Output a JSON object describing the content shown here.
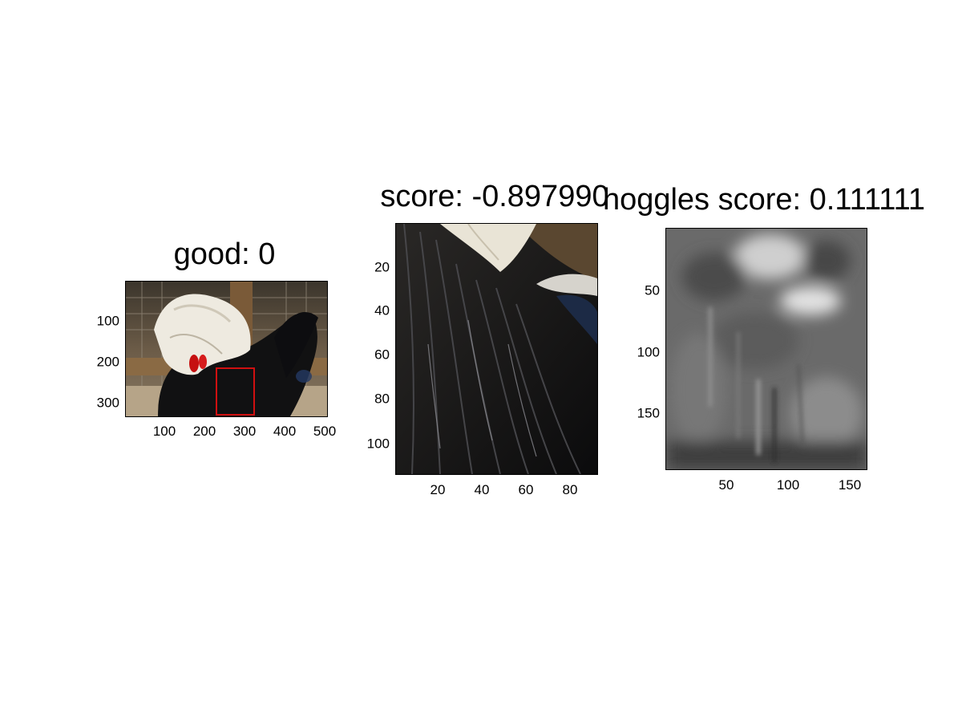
{
  "figure": {
    "panels": [
      {
        "id": "original",
        "title": "good: 0",
        "image": "rooster-photo",
        "highlight_box_color": "#d01010",
        "x_ticks": [
          "100",
          "200",
          "300",
          "400",
          "500"
        ],
        "y_ticks": [
          "100",
          "200",
          "300"
        ]
      },
      {
        "id": "crop",
        "title": "score: -0.897990",
        "image": "feather-crop",
        "x_ticks": [
          "20",
          "40",
          "60",
          "80"
        ],
        "y_ticks": [
          "20",
          "40",
          "60",
          "80",
          "100"
        ]
      },
      {
        "id": "hoggles",
        "title": "hoggles score: 0.111111",
        "image": "hoggles-grayscale-reconstruction",
        "x_ticks": [
          "50",
          "100",
          "150"
        ],
        "y_ticks": [
          "50",
          "100",
          "150"
        ]
      }
    ]
  }
}
